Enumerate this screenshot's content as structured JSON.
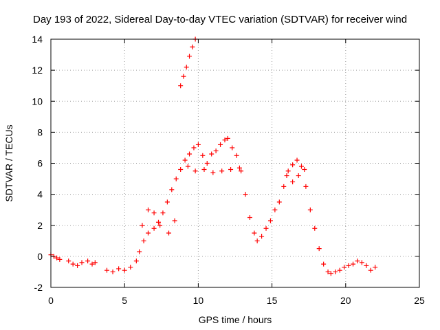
{
  "chart_data": {
    "type": "scatter",
    "title": "Day 193 of 2022, Sidereal Day-to-day VTEC variation (SDTVAR) for receiver wind",
    "xlabel": "GPS time / hours",
    "ylabel": "SDTVAR / TECUs",
    "xlim": [
      0,
      25
    ],
    "ylim": [
      -2,
      14
    ],
    "xticks": [
      0,
      5,
      10,
      15,
      20,
      25
    ],
    "yticks": [
      -2,
      0,
      2,
      4,
      6,
      8,
      10,
      12,
      14
    ],
    "xtick_labels": [
      "0",
      "5",
      "10",
      "15",
      "20",
      "25"
    ],
    "ytick_labels": [
      "-2",
      "0",
      "2",
      "4",
      "6",
      "8",
      "10",
      "12",
      "14"
    ],
    "grid": true,
    "marker": "+",
    "series_color": "#ff0000",
    "series": [
      {
        "name": "SDTVAR",
        "x": [
          0.0,
          0.2,
          0.4,
          0.6,
          1.2,
          1.5,
          1.8,
          2.1,
          2.5,
          2.8,
          3.0,
          3.8,
          4.2,
          4.6,
          5.0,
          5.4,
          5.8,
          6.0,
          6.3,
          6.6,
          7.0,
          7.3,
          7.6,
          7.9,
          8.2,
          8.5,
          8.8,
          9.1,
          9.4,
          9.7,
          10.0,
          10.3,
          10.6,
          10.9,
          11.2,
          11.5,
          11.8,
          12.0,
          12.3,
          12.6,
          12.9,
          13.2,
          13.5,
          13.8,
          14.0,
          14.3,
          14.6,
          14.9,
          15.2,
          15.5,
          15.8,
          16.1,
          16.4,
          16.7,
          17.0,
          17.3,
          17.6,
          17.9,
          18.2,
          18.5,
          18.8,
          19.0,
          19.3,
          19.6,
          19.9,
          20.2,
          20.5,
          20.8,
          21.1,
          21.4,
          21.7,
          22.0,
          8.8,
          9.0,
          9.2,
          9.4,
          9.6,
          9.8,
          6.2,
          6.6,
          7.0,
          7.4,
          8.0,
          8.4,
          9.3,
          9.8,
          10.4,
          11.0,
          11.6,
          12.2,
          12.8,
          16.0,
          16.4,
          16.8,
          17.2
        ],
        "y": [
          0.1,
          0.0,
          -0.1,
          -0.2,
          -0.3,
          -0.5,
          -0.6,
          -0.4,
          -0.3,
          -0.5,
          -0.4,
          -0.9,
          -1.0,
          -0.8,
          -0.9,
          -0.7,
          -0.3,
          0.3,
          1.0,
          1.5,
          1.8,
          2.2,
          2.8,
          3.5,
          4.3,
          5.0,
          5.6,
          6.2,
          6.6,
          7.0,
          7.2,
          6.5,
          6.0,
          6.6,
          6.8,
          7.2,
          7.5,
          7.6,
          7.0,
          6.5,
          5.5,
          4.0,
          2.5,
          1.5,
          1.0,
          1.3,
          1.8,
          2.3,
          3.0,
          3.5,
          4.5,
          5.5,
          5.9,
          6.2,
          5.8,
          4.5,
          3.0,
          1.8,
          0.5,
          -0.5,
          -1.0,
          -1.1,
          -1.0,
          -0.9,
          -0.7,
          -0.6,
          -0.5,
          -0.3,
          -0.4,
          -0.6,
          -0.9,
          -0.7,
          11.0,
          11.6,
          12.2,
          12.9,
          13.5,
          14.0,
          2.0,
          3.0,
          2.8,
          2.0,
          1.5,
          2.3,
          5.8,
          5.5,
          5.6,
          5.4,
          5.5,
          5.6,
          5.7,
          5.2,
          4.8,
          5.2,
          5.6
        ]
      }
    ]
  }
}
